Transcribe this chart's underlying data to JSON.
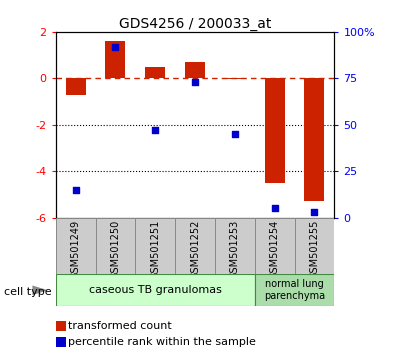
{
  "title": "GDS4256 / 200033_at",
  "samples": [
    "GSM501249",
    "GSM501250",
    "GSM501251",
    "GSM501252",
    "GSM501253",
    "GSM501254",
    "GSM501255"
  ],
  "transformed_count": [
    -0.7,
    1.6,
    0.5,
    0.7,
    -0.05,
    -4.5,
    -5.3
  ],
  "percentile_rank_pct": [
    15,
    92,
    47,
    73,
    45,
    5,
    3
  ],
  "ylim": [
    -6,
    2
  ],
  "yticks_left": [
    -6,
    -4,
    -2,
    0,
    2
  ],
  "yticks_right": [
    0,
    25,
    50,
    75,
    100
  ],
  "ytick_right_labels": [
    "0",
    "25",
    "50",
    "75",
    "100%"
  ],
  "dotted_lines": [
    -2,
    -4
  ],
  "bar_color": "#cc2200",
  "dot_color": "#0000cc",
  "group1_label": "caseous TB granulomas",
  "group2_label": "normal lung\nparenchyma",
  "group1_color": "#ccffcc",
  "group2_color": "#aaddaa",
  "cell_type_label": "cell type",
  "legend1_label": "transformed count",
  "legend2_label": "percentile rank within the sample"
}
